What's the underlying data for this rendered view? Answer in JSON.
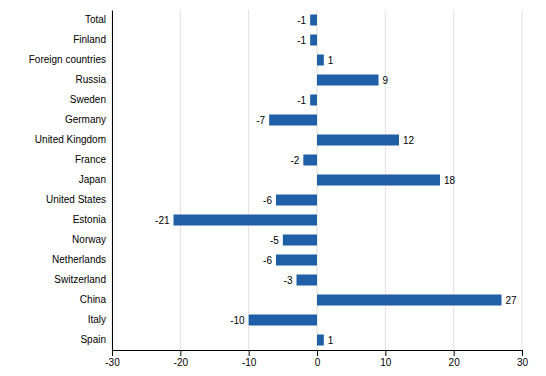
{
  "chart_data": {
    "type": "bar",
    "orientation": "horizontal",
    "categories": [
      "Spain",
      "Italy",
      "China",
      "Switzerland",
      "Netherlands",
      "Norway",
      "Estonia",
      "United States",
      "Japan",
      "France",
      "United Kingdom",
      "Germany",
      "Sweden",
      "Russia",
      "Foreign countries",
      "Finland",
      "Total"
    ],
    "values": [
      1,
      -10,
      27,
      -3,
      -6,
      -5,
      -21,
      -6,
      18,
      -2,
      12,
      -7,
      -1,
      9,
      1,
      -1,
      -1
    ],
    "color": "#1F5FA6",
    "xlim": [
      -30,
      30
    ],
    "xticks": [
      -30,
      -20,
      -10,
      0,
      10,
      20,
      30
    ],
    "grid": true,
    "data_labels": true
  }
}
